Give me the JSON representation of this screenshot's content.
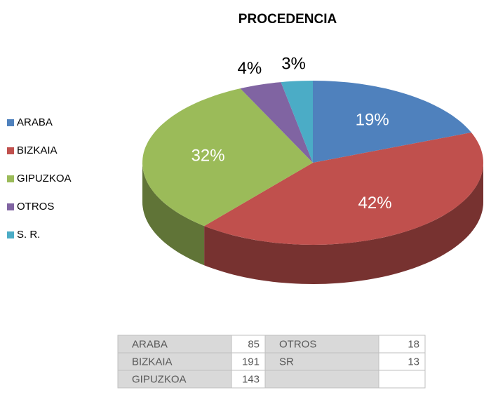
{
  "chart_data": {
    "type": "pie3d",
    "title": "PROCEDENCIA",
    "categories": [
      "ARABA",
      "BIZKAIA",
      "GIPUZKOA",
      "OTROS",
      "S. R."
    ],
    "values": [
      19,
      42,
      32,
      4,
      3
    ],
    "value_labels": [
      "19%",
      "42%",
      "32%",
      "4%",
      "3%"
    ],
    "colors": [
      "#4f81bd",
      "#c0504d",
      "#9bbb59",
      "#8064a2",
      "#4bacc6"
    ],
    "legend": "left"
  },
  "table": {
    "rows": [
      [
        "ARABA",
        85,
        "OTROS",
        18
      ],
      [
        "BIZKAIA",
        191,
        "SR",
        13
      ],
      [
        "GIPUZKOA",
        143
      ]
    ]
  }
}
